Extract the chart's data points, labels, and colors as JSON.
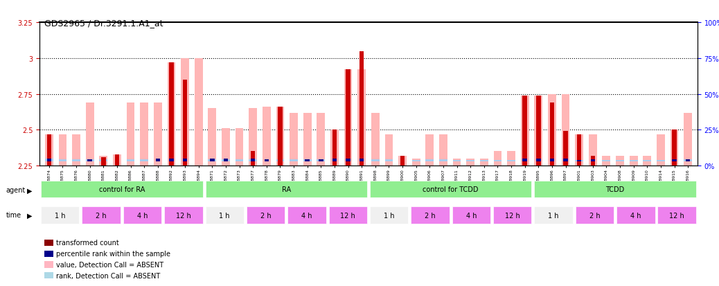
{
  "title": "GDS2965 / Dr.3291.1.A1_at",
  "ylim_left": [
    2.25,
    3.25
  ],
  "ylim_right": [
    0,
    100
  ],
  "yticks_left": [
    2.25,
    2.5,
    2.75,
    3.0,
    3.25
  ],
  "yticks_right": [
    0,
    25,
    50,
    75,
    100
  ],
  "ytick_labels_left": [
    "2.25",
    "2.5",
    "2.75",
    "3",
    "3.25"
  ],
  "ytick_labels_right": [
    "0%",
    "25%",
    "50%",
    "75%",
    "100%"
  ],
  "hlines": [
    2.5,
    2.75,
    3.0
  ],
  "samples": [
    "GSM228874",
    "GSM228875",
    "GSM228876",
    "GSM228880",
    "GSM228881",
    "GSM228882",
    "GSM228886",
    "GSM228887",
    "GSM228888",
    "GSM228892",
    "GSM228893",
    "GSM228894",
    "GSM228871",
    "GSM228872",
    "GSM228873",
    "GSM228877",
    "GSM228878",
    "GSM228879",
    "GSM228883",
    "GSM228884",
    "GSM228885",
    "GSM228889",
    "GSM228890",
    "GSM228891",
    "GSM228898",
    "GSM228899",
    "GSM228900",
    "GSM228905",
    "GSM228906",
    "GSM228907",
    "GSM228911",
    "GSM228912",
    "GSM228913",
    "GSM228917",
    "GSM228918",
    "GSM228919",
    "GSM228895",
    "GSM228896",
    "GSM228897",
    "GSM228901",
    "GSM228903",
    "GSM228904",
    "GSM228908",
    "GSM228909",
    "GSM228910",
    "GSM228914",
    "GSM228915",
    "GSM228916"
  ],
  "red_bars": [
    2.47,
    2.25,
    2.25,
    2.25,
    2.31,
    2.33,
    2.25,
    2.25,
    2.25,
    2.97,
    2.85,
    2.25,
    2.25,
    2.25,
    2.25,
    2.35,
    2.25,
    2.66,
    2.25,
    2.25,
    2.25,
    2.5,
    2.92,
    3.05,
    2.25,
    2.25,
    2.32,
    2.25,
    2.25,
    2.25,
    2.25,
    2.25,
    2.25,
    2.25,
    2.25,
    2.74,
    2.74,
    2.69,
    2.49,
    2.47,
    2.32,
    2.25,
    2.25,
    2.25,
    2.25,
    2.25,
    2.5,
    2.25
  ],
  "blue_bars": [
    0.23,
    0.0,
    0.0,
    0.15,
    0.0,
    0.0,
    0.0,
    0.0,
    0.22,
    0.22,
    0.22,
    0.0,
    0.22,
    0.22,
    0.0,
    0.22,
    0.18,
    0.0,
    0.0,
    0.18,
    0.18,
    0.22,
    0.22,
    0.22,
    0.0,
    0.0,
    0.0,
    0.0,
    0.0,
    0.0,
    0.0,
    0.0,
    0.0,
    0.0,
    0.0,
    0.22,
    0.22,
    0.22,
    0.22,
    0.12,
    0.2,
    0.0,
    0.0,
    0.0,
    0.0,
    0.0,
    0.2,
    0.18
  ],
  "pink_bars": [
    2.47,
    2.47,
    2.47,
    2.69,
    2.32,
    2.33,
    2.69,
    2.69,
    2.69,
    2.97,
    3.0,
    3.0,
    2.65,
    2.51,
    2.51,
    2.65,
    2.66,
    2.66,
    2.62,
    2.62,
    2.62,
    2.5,
    2.92,
    2.92,
    2.62,
    2.47,
    2.32,
    2.3,
    2.47,
    2.47,
    2.3,
    2.3,
    2.3,
    2.35,
    2.35,
    2.74,
    2.74,
    2.75,
    2.75,
    2.47,
    2.47,
    2.32,
    2.32,
    2.32,
    2.32,
    2.47,
    2.5,
    2.62
  ],
  "light_blue_bars": [
    0.23,
    0.18,
    0.18,
    0.15,
    0.15,
    0.0,
    0.15,
    0.15,
    0.0,
    0.0,
    0.0,
    0.0,
    0.15,
    0.15,
    0.18,
    0.15,
    0.0,
    0.18,
    0.15,
    0.15,
    0.15,
    0.0,
    0.0,
    0.0,
    0.15,
    0.18,
    0.0,
    0.12,
    0.15,
    0.15,
    0.12,
    0.12,
    0.12,
    0.12,
    0.12,
    0.0,
    0.0,
    0.0,
    0.0,
    0.12,
    0.0,
    0.12,
    0.12,
    0.12,
    0.12,
    0.12,
    0.0,
    0.15
  ],
  "agent_groups": [
    {
      "label": "control for RA",
      "start": 0,
      "end": 12,
      "color": "#90EE90"
    },
    {
      "label": "RA",
      "start": 12,
      "end": 24,
      "color": "#90EE90"
    },
    {
      "label": "control for TCDD",
      "start": 24,
      "end": 36,
      "color": "#90EE90"
    },
    {
      "label": "TCDD",
      "start": 36,
      "end": 48,
      "color": "#90EE90"
    }
  ],
  "time_groups": [
    {
      "label": "1 h",
      "start": 0,
      "end": 3,
      "color": "#f0f0f0"
    },
    {
      "label": "2 h",
      "start": 3,
      "end": 6,
      "color": "#ee82ee"
    },
    {
      "label": "4 h",
      "start": 6,
      "end": 9,
      "color": "#ee82ee"
    },
    {
      "label": "12 h",
      "start": 9,
      "end": 12,
      "color": "#ee82ee"
    },
    {
      "label": "1 h",
      "start": 12,
      "end": 15,
      "color": "#f0f0f0"
    },
    {
      "label": "2 h",
      "start": 15,
      "end": 18,
      "color": "#ee82ee"
    },
    {
      "label": "4 h",
      "start": 18,
      "end": 21,
      "color": "#ee82ee"
    },
    {
      "label": "12 h",
      "start": 21,
      "end": 24,
      "color": "#ee82ee"
    },
    {
      "label": "1 h",
      "start": 24,
      "end": 27,
      "color": "#f0f0f0"
    },
    {
      "label": "2 h",
      "start": 27,
      "end": 30,
      "color": "#ee82ee"
    },
    {
      "label": "4 h",
      "start": 30,
      "end": 33,
      "color": "#ee82ee"
    },
    {
      "label": "12 h",
      "start": 33,
      "end": 36,
      "color": "#ee82ee"
    },
    {
      "label": "1 h",
      "start": 36,
      "end": 39,
      "color": "#f0f0f0"
    },
    {
      "label": "2 h",
      "start": 39,
      "end": 42,
      "color": "#ee82ee"
    },
    {
      "label": "4 h",
      "start": 42,
      "end": 45,
      "color": "#ee82ee"
    },
    {
      "label": "12 h",
      "start": 45,
      "end": 48,
      "color": "#ee82ee"
    }
  ],
  "legend_items": [
    {
      "color": "#8B0000",
      "label": "transformed count"
    },
    {
      "color": "#00008B",
      "label": "percentile rank within the sample"
    },
    {
      "color": "#FFB6C1",
      "label": "value, Detection Call = ABSENT"
    },
    {
      "color": "#ADD8E6",
      "label": "rank, Detection Call = ABSENT"
    }
  ],
  "bar_width": 0.6,
  "ybase": 2.25,
  "color_red": "#CC0000",
  "color_blue": "#00008B",
  "color_pink": "#FFB6B6",
  "color_light_blue": "#AACCEE",
  "color_grid": "#000000",
  "bg_color": "#f5f5f5"
}
